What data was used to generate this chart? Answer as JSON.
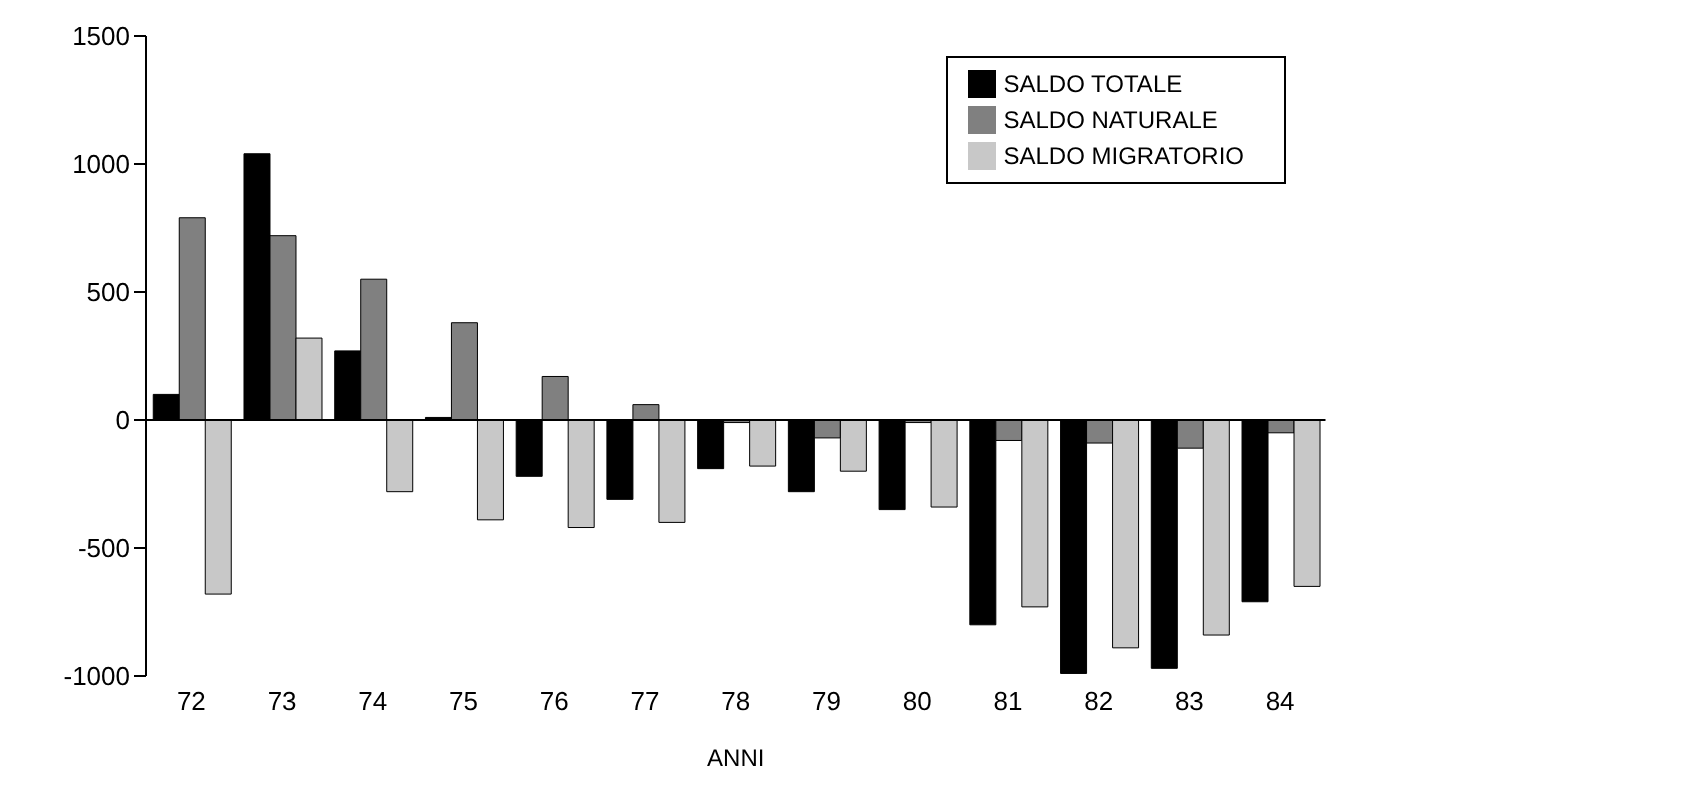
{
  "chart_data": {
    "type": "bar",
    "xlabel": "ANNI",
    "categories": [
      "72",
      "73",
      "74",
      "75",
      "76",
      "77",
      "78",
      "79",
      "80",
      "81",
      "82",
      "83",
      "84"
    ],
    "series": [
      {
        "name": "SALDO TOTALE",
        "color": "#000000",
        "values": [
          100,
          1040,
          270,
          10,
          -220,
          -310,
          -190,
          -280,
          -350,
          -800,
          -990,
          -970,
          -710
        ]
      },
      {
        "name": "SALDO NATURALE",
        "color": "#808080",
        "values": [
          790,
          720,
          550,
          380,
          170,
          60,
          -10,
          -70,
          -10,
          -80,
          -90,
          -110,
          -50
        ]
      },
      {
        "name": "SALDO MIGRATORIO",
        "color": "#c8c8c8",
        "values": [
          -680,
          320,
          -280,
          -390,
          -420,
          -400,
          -180,
          -200,
          -340,
          -730,
          -890,
          -840,
          -650
        ]
      }
    ],
    "ylim": [
      -1000,
      1500
    ],
    "yticks": [
      -1000,
      -500,
      0,
      500,
      1000,
      1500
    ],
    "legend": "top right"
  }
}
